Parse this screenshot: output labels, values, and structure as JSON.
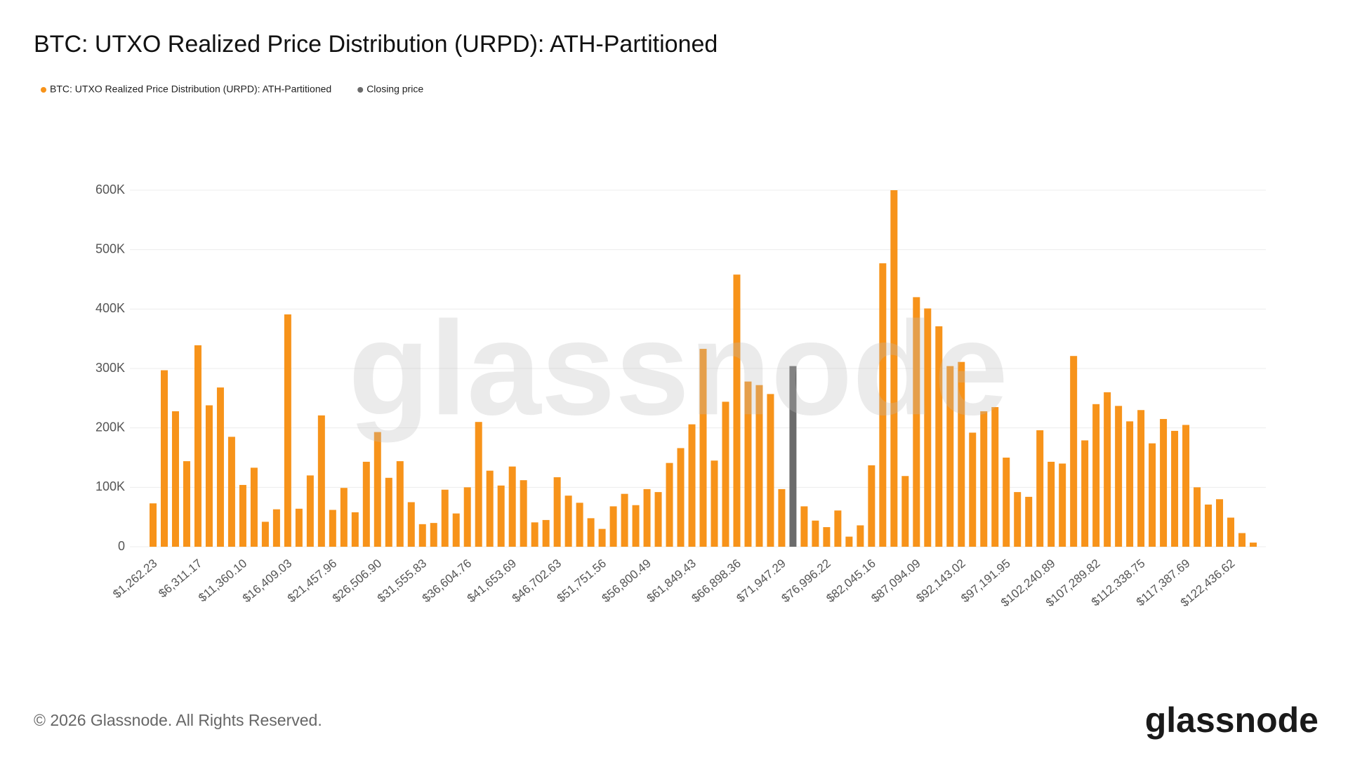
{
  "chart_data": {
    "type": "bar",
    "title": "BTC: UTXO Realized Price Distribution (URPD): ATH-Partitioned",
    "footer": "© 2026 Glassnode. All Rights Reserved.",
    "logo": "glassnode",
    "watermark": "glassnode",
    "categories": [
      "$1,262.23",
      null,
      null,
      null,
      "$6,311.17",
      null,
      null,
      null,
      "$11,360.10",
      null,
      null,
      null,
      "$16,409.03",
      null,
      null,
      null,
      "$21,457.96",
      null,
      null,
      null,
      "$26,506.90",
      null,
      null,
      null,
      "$31,555.83",
      null,
      null,
      null,
      "$36,604.76",
      null,
      null,
      null,
      "$41,653.69",
      null,
      null,
      null,
      "$46,702.63",
      null,
      null,
      null,
      "$51,751.56",
      null,
      null,
      null,
      "$56,800.49",
      null,
      null,
      null,
      "$61,849.43",
      null,
      null,
      null,
      "$66,898.36",
      null,
      null,
      null,
      "$71,947.29",
      null,
      null,
      null,
      "$76,996.22",
      null,
      null,
      null,
      "$82,045.16",
      null,
      null,
      null,
      "$87,094.09",
      null,
      null,
      null,
      "$92,143.02",
      null,
      null,
      null,
      "$97,191.95",
      null,
      null,
      null,
      "$102,240.89",
      null,
      null,
      null,
      "$107,289.82",
      null,
      null,
      null,
      "$112,338.75",
      null,
      null,
      null,
      "$117,387.69",
      null,
      null,
      null,
      "$122,436.62",
      null,
      null
    ],
    "series": [
      {
        "name": "BTC: UTXO Realized Price Distribution (URPD): ATH-Partitioned",
        "color": "#f7931a",
        "values": [
          73000,
          297000,
          228000,
          144000,
          339000,
          238000,
          268000,
          185000,
          104000,
          133000,
          42000,
          63000,
          391000,
          64000,
          120000,
          221000,
          62000,
          99000,
          58000,
          143000,
          193000,
          116000,
          144000,
          75000,
          38000,
          40000,
          96000,
          56000,
          100000,
          210000,
          128000,
          103000,
          135000,
          112000,
          41000,
          45000,
          117000,
          86000,
          74000,
          48000,
          30000,
          68000,
          89000,
          70000,
          97000,
          92000,
          141000,
          166000,
          206000,
          333000,
          145000,
          244000,
          458000,
          278000,
          272000,
          257000,
          97000,
          null,
          68000,
          44000,
          33000,
          61000,
          17000,
          36000,
          137000,
          477000,
          600000,
          119000,
          420000,
          401000,
          371000,
          304000,
          311000,
          192000,
          228000,
          235000,
          150000,
          92000,
          84000,
          196000,
          143000,
          140000,
          321000,
          179000,
          240000,
          260000,
          237000,
          211000,
          230000,
          174000,
          215000,
          195000,
          205000,
          100000,
          71000,
          80000,
          49000,
          23000,
          7000
        ]
      },
      {
        "name": "Closing price",
        "color": "#6b6b6b",
        "values": [
          null,
          null,
          null,
          null,
          null,
          null,
          null,
          null,
          null,
          null,
          null,
          null,
          null,
          null,
          null,
          null,
          null,
          null,
          null,
          null,
          null,
          null,
          null,
          null,
          null,
          null,
          null,
          null,
          null,
          null,
          null,
          null,
          null,
          null,
          null,
          null,
          null,
          null,
          null,
          null,
          null,
          null,
          null,
          null,
          null,
          null,
          null,
          null,
          null,
          null,
          null,
          null,
          null,
          null,
          null,
          null,
          null,
          304000,
          null,
          null,
          null,
          null,
          null,
          null,
          null,
          null,
          null,
          null,
          null,
          null,
          null,
          null,
          null,
          null,
          null,
          null,
          null,
          null,
          null,
          null,
          null,
          null,
          null,
          null,
          null,
          null,
          null,
          null,
          null,
          null,
          null,
          null,
          null,
          null,
          null,
          null,
          null,
          null,
          null
        ]
      }
    ],
    "ylim": [
      0,
      600000
    ],
    "yticks": [
      0,
      {
        "value": 100000,
        "label": "100K"
      },
      {
        "value": 200000,
        "label": "200K"
      },
      {
        "value": 300000,
        "label": "300K"
      },
      {
        "value": 400000,
        "label": "400K"
      },
      {
        "value": 500000,
        "label": "500K"
      },
      {
        "value": 600000,
        "label": "600K"
      }
    ],
    "grid": true
  }
}
